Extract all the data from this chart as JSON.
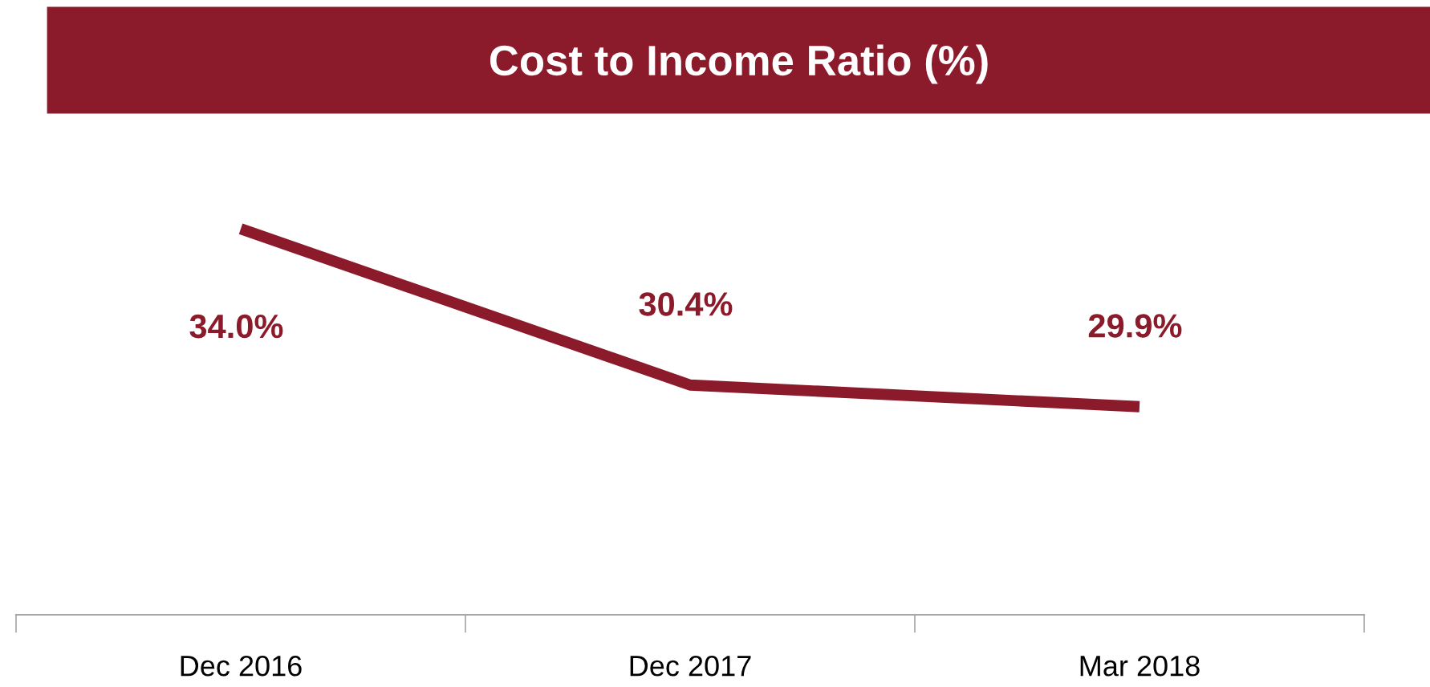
{
  "chart_data": {
    "type": "line",
    "title": "Cost to Income Ratio (%)",
    "categories": [
      "Dec 2016",
      "Dec 2017",
      "Mar 2018"
    ],
    "series": [
      {
        "color": "#8b1a2b",
        "values": [
          34.0,
          30.4,
          29.9
        ],
        "value_labels": [
          "34.0%",
          "30.4%",
          "29.9%"
        ]
      }
    ],
    "grid": false,
    "legend": false,
    "marker": "none",
    "line_style": "solid",
    "tick_labels": "x"
  }
}
